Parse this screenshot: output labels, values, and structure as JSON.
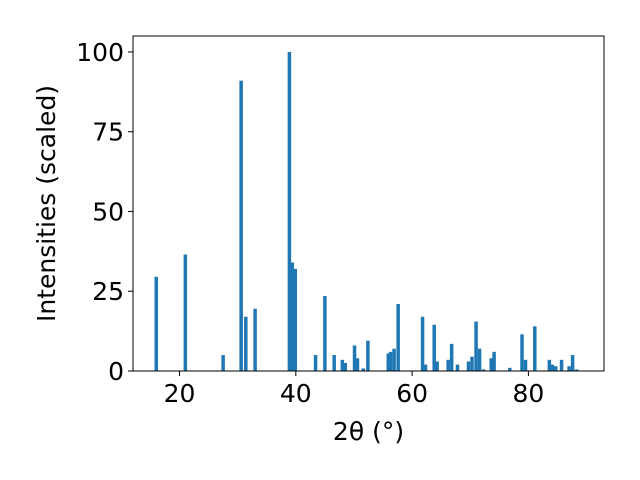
{
  "chart_data": {
    "type": "bar",
    "xlabel": "2θ (°)",
    "ylabel": "Intensities (scaled)",
    "xlim": [
      12,
      93
    ],
    "ylim": [
      0,
      105
    ],
    "xticks": [
      20,
      40,
      60,
      80
    ],
    "yticks": [
      0,
      25,
      50,
      75,
      100
    ],
    "bar_color": "#1f77b4",
    "bar_width": 0.6,
    "grid": false,
    "x": [
      16.0,
      21.0,
      27.5,
      30.6,
      31.4,
      33.0,
      38.9,
      39.4,
      39.9,
      43.4,
      45.0,
      46.6,
      48.0,
      48.5,
      50.1,
      50.6,
      51.6,
      52.4,
      55.9,
      56.3,
      56.9,
      57.6,
      61.8,
      62.3,
      63.8,
      64.3,
      66.2,
      66.8,
      67.8,
      69.7,
      70.3,
      71.0,
      71.6,
      72.3,
      73.6,
      74.1,
      76.8,
      78.9,
      79.5,
      81.1,
      83.6,
      84.1,
      84.7,
      85.7,
      87.0,
      87.6,
      88.3
    ],
    "values": [
      29.5,
      36.5,
      5.0,
      91.0,
      17.0,
      19.5,
      100.0,
      34.0,
      32.0,
      5.0,
      23.5,
      5.0,
      3.5,
      2.5,
      8.0,
      4.0,
      0.8,
      9.5,
      5.5,
      6.0,
      7.0,
      21.0,
      17.0,
      2.0,
      14.5,
      3.0,
      3.5,
      8.5,
      2.0,
      3.0,
      4.5,
      15.5,
      7.0,
      0.5,
      4.0,
      6.0,
      1.0,
      11.5,
      3.5,
      14.0,
      3.5,
      2.0,
      1.5,
      3.5,
      1.5,
      5.0,
      0.5
    ]
  }
}
